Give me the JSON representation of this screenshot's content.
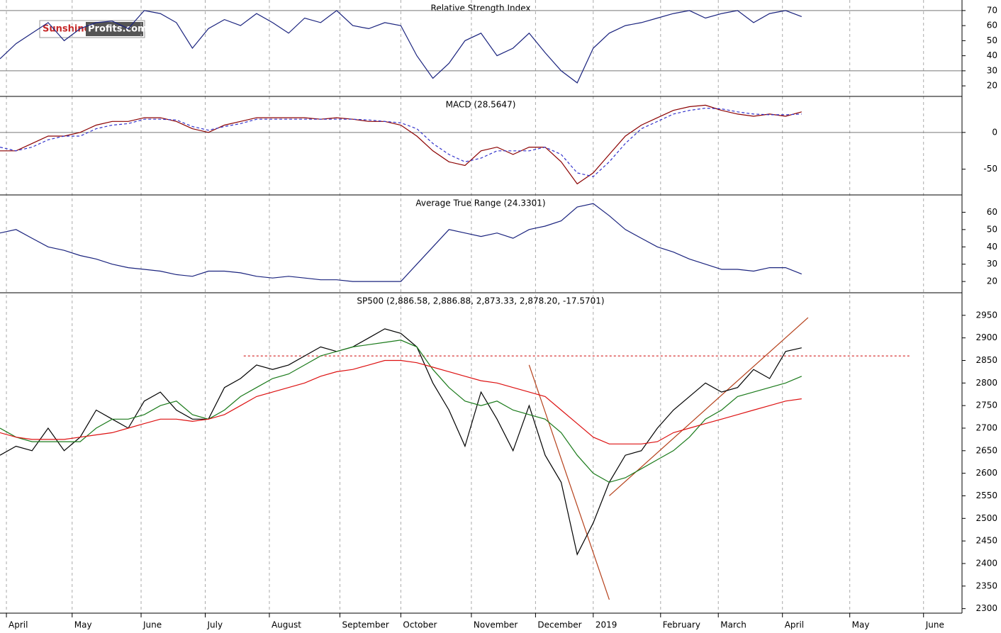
{
  "logo": {
    "brand": "Sunshine",
    "site": "Profits.com"
  },
  "chart_data": [
    {
      "type": "line",
      "title": "Relative Strength Index",
      "x": [
        0,
        5,
        10,
        15,
        20,
        25,
        30,
        35,
        40,
        45,
        50,
        55,
        60,
        65,
        70,
        75,
        80,
        85,
        90,
        95,
        100,
        105,
        110,
        115,
        120,
        125,
        130,
        135,
        140,
        145,
        150,
        155,
        160,
        165,
        170,
        175,
        180,
        185,
        190,
        195,
        200,
        205,
        210,
        215,
        220,
        225,
        230,
        235,
        240,
        245,
        250
      ],
      "xlim": [
        0,
        300
      ],
      "ylim": [
        13,
        77
      ],
      "yticks": [
        20,
        30,
        40,
        50,
        60,
        70
      ],
      "hlines": [
        30,
        70
      ],
      "series": [
        {
          "color": "#1a237e",
          "values": [
            38,
            48,
            55,
            62,
            50,
            58,
            62,
            63,
            58,
            70,
            68,
            62,
            45,
            58,
            64,
            60,
            68,
            62,
            55,
            65,
            62,
            70,
            60,
            58,
            62,
            60,
            40,
            25,
            35,
            50,
            55,
            40,
            45,
            55,
            42,
            30,
            22,
            45,
            55,
            60,
            62,
            65,
            68,
            70,
            65,
            68,
            70,
            62,
            68,
            70,
            66
          ]
        }
      ]
    },
    {
      "type": "line",
      "title": "MACD (28.5647)",
      "x": [
        0,
        5,
        10,
        15,
        20,
        25,
        30,
        35,
        40,
        45,
        50,
        55,
        60,
        65,
        70,
        75,
        80,
        85,
        90,
        95,
        100,
        105,
        110,
        115,
        120,
        125,
        130,
        135,
        140,
        145,
        150,
        155,
        160,
        165,
        170,
        175,
        180,
        185,
        190,
        195,
        200,
        205,
        210,
        215,
        220,
        225,
        230,
        235,
        240,
        245,
        250
      ],
      "xlim": [
        0,
        300
      ],
      "ylim": [
        -85,
        49
      ],
      "yticks": [
        -50,
        0
      ],
      "hlines": [
        0
      ],
      "series": [
        {
          "color": "#8b0000",
          "values": [
            -25,
            -25,
            -15,
            -5,
            -5,
            0,
            10,
            15,
            15,
            20,
            20,
            15,
            5,
            0,
            10,
            15,
            20,
            20,
            20,
            20,
            18,
            20,
            18,
            15,
            15,
            10,
            -5,
            -25,
            -40,
            -45,
            -25,
            -20,
            -30,
            -20,
            -20,
            -40,
            -70,
            -55,
            -30,
            -5,
            10,
            20,
            30,
            35,
            37,
            30,
            25,
            22,
            25,
            22,
            28
          ]
        },
        {
          "color": "#3333cc",
          "dashed": true,
          "values": [
            -20,
            -25,
            -20,
            -10,
            -5,
            -5,
            5,
            10,
            12,
            18,
            18,
            17,
            8,
            3,
            8,
            12,
            18,
            18,
            18,
            18,
            18,
            18,
            18,
            17,
            15,
            13,
            5,
            -15,
            -30,
            -40,
            -35,
            -25,
            -25,
            -25,
            -20,
            -30,
            -55,
            -60,
            -40,
            -15,
            5,
            15,
            25,
            30,
            33,
            32,
            28,
            25,
            24,
            24,
            25
          ]
        }
      ]
    },
    {
      "type": "line",
      "title": "Average True Range (24.3301)",
      "x": [
        0,
        5,
        10,
        15,
        20,
        25,
        30,
        35,
        40,
        45,
        50,
        55,
        60,
        65,
        70,
        75,
        80,
        85,
        90,
        95,
        100,
        105,
        110,
        115,
        120,
        125,
        130,
        135,
        140,
        145,
        150,
        155,
        160,
        165,
        170,
        175,
        180,
        185,
        190,
        195,
        200,
        205,
        210,
        215,
        220,
        225,
        230,
        235,
        240,
        245,
        250
      ],
      "xlim": [
        0,
        300
      ],
      "ylim": [
        13.5,
        70
      ],
      "yticks": [
        20,
        30,
        40,
        50,
        60
      ],
      "series": [
        {
          "color": "#1a237e",
          "values": [
            48,
            50,
            45,
            40,
            38,
            35,
            33,
            30,
            28,
            27,
            26,
            24,
            23,
            26,
            26,
            25,
            23,
            22,
            23,
            22,
            21,
            21,
            20,
            20,
            20,
            20,
            30,
            40,
            50,
            48,
            46,
            48,
            45,
            50,
            52,
            55,
            63,
            65,
            58,
            50,
            45,
            40,
            37,
            33,
            30,
            27,
            27,
            26,
            28,
            28,
            24.3
          ]
        }
      ]
    },
    {
      "type": "line",
      "title": "SP500 (2,886.58, 2,886.88, 2,873.33, 2,878.20, -17.5701)",
      "x": [
        0,
        5,
        10,
        15,
        20,
        25,
        30,
        35,
        40,
        45,
        50,
        55,
        60,
        65,
        70,
        75,
        80,
        85,
        90,
        95,
        100,
        105,
        110,
        115,
        120,
        125,
        130,
        135,
        140,
        145,
        150,
        155,
        160,
        165,
        170,
        175,
        180,
        185,
        190,
        195,
        200,
        205,
        210,
        215,
        220,
        225,
        230,
        235,
        240,
        245,
        250
      ],
      "xlim": [
        0,
        300
      ],
      "ylim": [
        2290,
        3000
      ],
      "yticks": [
        2300,
        2350,
        2400,
        2450,
        2500,
        2550,
        2600,
        2650,
        2700,
        2750,
        2800,
        2850,
        2900,
        2950
      ],
      "xticks": [
        {
          "value": 2,
          "label": "April"
        },
        {
          "value": 22.5,
          "label": "May"
        },
        {
          "value": 44,
          "label": "June"
        },
        {
          "value": 64,
          "label": "July"
        },
        {
          "value": 84,
          "label": "August"
        },
        {
          "value": 106,
          "label": "September"
        },
        {
          "value": 125,
          "label": "October"
        },
        {
          "value": 147,
          "label": "November"
        },
        {
          "value": 167,
          "label": "December"
        },
        {
          "value": 185,
          "label": "2019"
        },
        {
          "value": 206,
          "label": "February"
        },
        {
          "value": 224,
          "label": "March"
        },
        {
          "value": 244,
          "label": "April"
        },
        {
          "value": 265,
          "label": "May"
        },
        {
          "value": 288,
          "label": "June"
        }
      ],
      "reference_line": {
        "value": 2860,
        "x": [
          76,
          284
        ],
        "color": "#cc0000"
      },
      "trendlines": [
        {
          "x": [
            165,
            190
          ],
          "y": [
            2840,
            2320
          ],
          "color": "#b5401a"
        },
        {
          "x": [
            190,
            252
          ],
          "y": [
            2550,
            2945
          ],
          "color": "#b5401a"
        }
      ],
      "series": [
        {
          "color": "#000000",
          "values": [
            2640,
            2660,
            2650,
            2700,
            2650,
            2680,
            2740,
            2720,
            2700,
            2760,
            2780,
            2740,
            2720,
            2720,
            2790,
            2810,
            2840,
            2830,
            2840,
            2860,
            2880,
            2870,
            2880,
            2900,
            2920,
            2910,
            2880,
            2800,
            2740,
            2660,
            2780,
            2720,
            2650,
            2750,
            2640,
            2580,
            2420,
            2490,
            2580,
            2640,
            2650,
            2700,
            2740,
            2770,
            2800,
            2780,
            2790,
            2830,
            2810,
            2870,
            2878
          ]
        },
        {
          "color": "#1a7a1a",
          "values": [
            2700,
            2680,
            2670,
            2670,
            2670,
            2670,
            2700,
            2720,
            2720,
            2730,
            2750,
            2760,
            2730,
            2720,
            2740,
            2770,
            2790,
            2810,
            2820,
            2840,
            2860,
            2870,
            2880,
            2885,
            2890,
            2895,
            2880,
            2830,
            2790,
            2760,
            2750,
            2760,
            2740,
            2730,
            2720,
            2690,
            2640,
            2600,
            2580,
            2590,
            2610,
            2630,
            2650,
            2680,
            2720,
            2740,
            2770,
            2780,
            2790,
            2800,
            2815
          ]
        },
        {
          "color": "#dd1111",
          "values": [
            2690,
            2680,
            2675,
            2675,
            2675,
            2680,
            2685,
            2690,
            2700,
            2710,
            2720,
            2720,
            2715,
            2720,
            2730,
            2750,
            2770,
            2780,
            2790,
            2800,
            2815,
            2825,
            2830,
            2840,
            2850,
            2850,
            2845,
            2835,
            2825,
            2815,
            2805,
            2800,
            2790,
            2780,
            2770,
            2740,
            2710,
            2680,
            2665,
            2665,
            2665,
            2670,
            2690,
            2700,
            2710,
            2720,
            2730,
            2740,
            2750,
            2760,
            2765
          ]
        }
      ]
    }
  ]
}
